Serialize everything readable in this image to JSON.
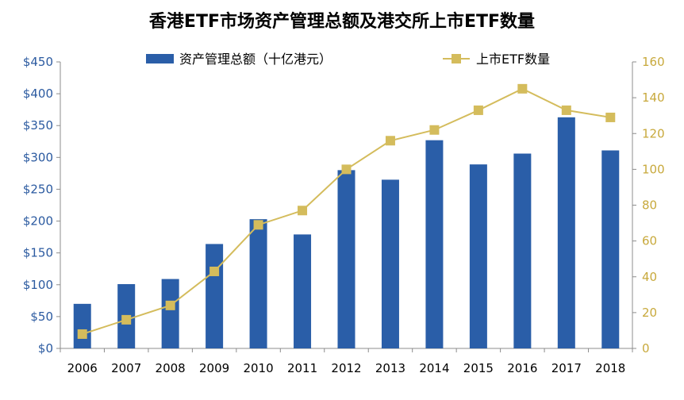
{
  "chart_data": {
    "type": "bar+line",
    "title": "香港ETF市场资产管理总额及港交所上市ETF数量",
    "categories": [
      "2006",
      "2007",
      "2008",
      "2009",
      "2010",
      "2011",
      "2012",
      "2013",
      "2014",
      "2015",
      "2016",
      "2017",
      "2018"
    ],
    "series": [
      {
        "name": "资产管理总额（十亿港元）",
        "type": "bar",
        "axis": "left",
        "color": "#2a5ea8",
        "values": [
          70,
          101,
          109,
          164,
          203,
          179,
          280,
          265,
          327,
          289,
          306,
          363,
          311
        ]
      },
      {
        "name": "上市ETF数量",
        "type": "line",
        "axis": "right",
        "color": "#d4bc5c",
        "values": [
          8,
          16,
          24,
          43,
          69,
          77,
          100,
          116,
          122,
          133,
          145,
          133,
          129
        ]
      }
    ],
    "y_left": {
      "range": [
        0,
        450
      ],
      "ticks": [
        "$0",
        "$50",
        "$100",
        "$150",
        "$200",
        "$250",
        "$300",
        "$350",
        "$400",
        "$450"
      ],
      "tick_values": [
        0,
        50,
        100,
        150,
        200,
        250,
        300,
        350,
        400,
        450
      ],
      "color": "#2b5aa0"
    },
    "y_right": {
      "range": [
        0,
        160
      ],
      "ticks": [
        "0",
        "20",
        "40",
        "60",
        "80",
        "100",
        "120",
        "140",
        "160"
      ],
      "tick_values": [
        0,
        20,
        40,
        60,
        80,
        100,
        120,
        140,
        160
      ],
      "color": "#c8a93c"
    },
    "grid": false,
    "legend_position": "top"
  }
}
